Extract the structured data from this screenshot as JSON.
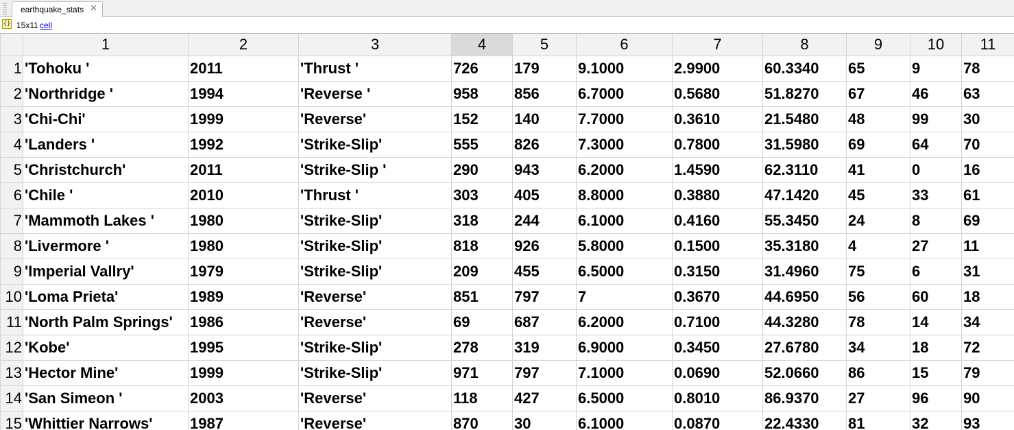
{
  "tab": {
    "title": "earthquake_stats",
    "close_glyph": "✕"
  },
  "info": {
    "icon": "{}",
    "size": "15x11",
    "class_link": "cell"
  },
  "columns": [
    "1",
    "2",
    "3",
    "4",
    "5",
    "6",
    "7",
    "8",
    "9",
    "10",
    "11"
  ],
  "selected_column": "4",
  "rows": [
    {
      "index": "1",
      "cells": [
        "'Tohoku '",
        "2011",
        "'Thrust '",
        "726",
        "179",
        "9.1000",
        "2.9900",
        "60.3340",
        "65",
        "9",
        "78"
      ]
    },
    {
      "index": "2",
      "cells": [
        "'Northridge '",
        "1994",
        "'Reverse '",
        "958",
        "856",
        "6.7000",
        "0.5680",
        "51.8270",
        "67",
        "46",
        "63"
      ]
    },
    {
      "index": "3",
      "cells": [
        "'Chi-Chi'",
        "1999",
        "'Reverse'",
        "152",
        "140",
        "7.7000",
        "0.3610",
        "21.5480",
        "48",
        "99",
        "30"
      ]
    },
    {
      "index": "4",
      "cells": [
        "'Landers '",
        "1992",
        "'Strike-Slip'",
        "555",
        "826",
        "7.3000",
        "0.7800",
        "31.5980",
        "69",
        "64",
        "70"
      ]
    },
    {
      "index": "5",
      "cells": [
        "'Christchurch'",
        "2011",
        "'Strike-Slip '",
        "290",
        "943",
        "6.2000",
        "1.4590",
        "62.3110",
        "41",
        "0",
        "16"
      ]
    },
    {
      "index": "6",
      "cells": [
        "'Chile '",
        "2010",
        "'Thrust '",
        "303",
        "405",
        "8.8000",
        "0.3880",
        "47.1420",
        "45",
        "33",
        "61"
      ]
    },
    {
      "index": "7",
      "cells": [
        "'Mammoth Lakes '",
        "1980",
        "'Strike-Slip'",
        "318",
        "244",
        "6.1000",
        "0.4160",
        "55.3450",
        "24",
        "8",
        "69"
      ]
    },
    {
      "index": "8",
      "cells": [
        "'Livermore '",
        "1980",
        "'Strike-Slip'",
        "818",
        "926",
        "5.8000",
        "0.1500",
        "35.3180",
        "4",
        "27",
        "11"
      ]
    },
    {
      "index": "9",
      "cells": [
        "'Imperial Vallry'",
        "1979",
        "'Strike-Slip'",
        "209",
        "455",
        "6.5000",
        "0.3150",
        "31.4960",
        "75",
        "6",
        "31"
      ]
    },
    {
      "index": "10",
      "cells": [
        "'Loma Prieta'",
        "1989",
        "'Reverse'",
        "851",
        "797",
        "7",
        "0.3670",
        "44.6950",
        "56",
        "60",
        "18"
      ]
    },
    {
      "index": "11",
      "cells": [
        "'North Palm Springs'",
        "1986",
        "'Reverse'",
        "69",
        "687",
        "6.2000",
        "0.7100",
        "44.3280",
        "78",
        "14",
        "34"
      ]
    },
    {
      "index": "12",
      "cells": [
        "'Kobe'",
        "1995",
        "'Strike-Slip'",
        "278",
        "319",
        "6.9000",
        "0.3450",
        "27.6780",
        "34",
        "18",
        "72"
      ]
    },
    {
      "index": "13",
      "cells": [
        "'Hector Mine'",
        "1999",
        "'Strike-Slip'",
        "971",
        "797",
        "7.1000",
        "0.0690",
        "52.0660",
        "86",
        "15",
        "79"
      ]
    },
    {
      "index": "14",
      "cells": [
        "'San Simeon '",
        "2003",
        "'Reverse'",
        "118",
        "427",
        "6.5000",
        "0.8010",
        "86.9370",
        "27",
        "96",
        "90"
      ]
    },
    {
      "index": "15",
      "cells": [
        "'Whittier Narrows'",
        "1987",
        "'Reverse'",
        "870",
        "30",
        "6.1000",
        "0.0870",
        "22.4330",
        "81",
        "32",
        "93"
      ]
    }
  ]
}
